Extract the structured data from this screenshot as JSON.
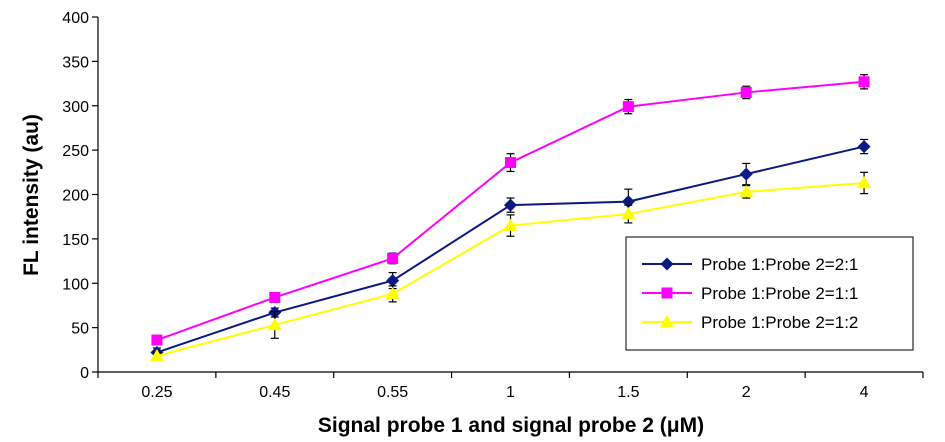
{
  "chart_data": {
    "type": "line",
    "title": "",
    "xlabel": "Signal probe 1 and signal probe 2 (μM)",
    "ylabel": "FL intensity (au)",
    "categories": [
      "0.25",
      "0.45",
      "0.55",
      "1",
      "1.5",
      "2",
      "4"
    ],
    "ylim": [
      0,
      400
    ],
    "yticks": [
      "0",
      "50",
      "100",
      "150",
      "200",
      "250",
      "300",
      "350",
      "400"
    ],
    "grid": false,
    "legend_position": "bottom-right",
    "series": [
      {
        "name": "Probe 1:Probe 2=2:1",
        "color": "#0a1a80",
        "marker": "diamond",
        "values": [
          22,
          67,
          103,
          188,
          192,
          223,
          254
        ],
        "errors": [
          5,
          5,
          9,
          8,
          14,
          12,
          8
        ]
      },
      {
        "name": "Probe 1:Probe 2=1:1",
        "color": "#ff00ff",
        "marker": "square",
        "values": [
          36,
          84,
          128,
          236,
          299,
          315,
          327
        ],
        "errors": [
          3,
          4,
          6,
          10,
          8,
          7,
          8
        ]
      },
      {
        "name": "Probe 1:Probe 2=1:2",
        "color": "#ffff00",
        "marker": "triangle",
        "values": [
          18,
          53,
          88,
          165,
          178,
          203,
          213
        ],
        "errors": [
          4,
          15,
          9,
          12,
          10,
          7,
          12
        ]
      }
    ]
  }
}
